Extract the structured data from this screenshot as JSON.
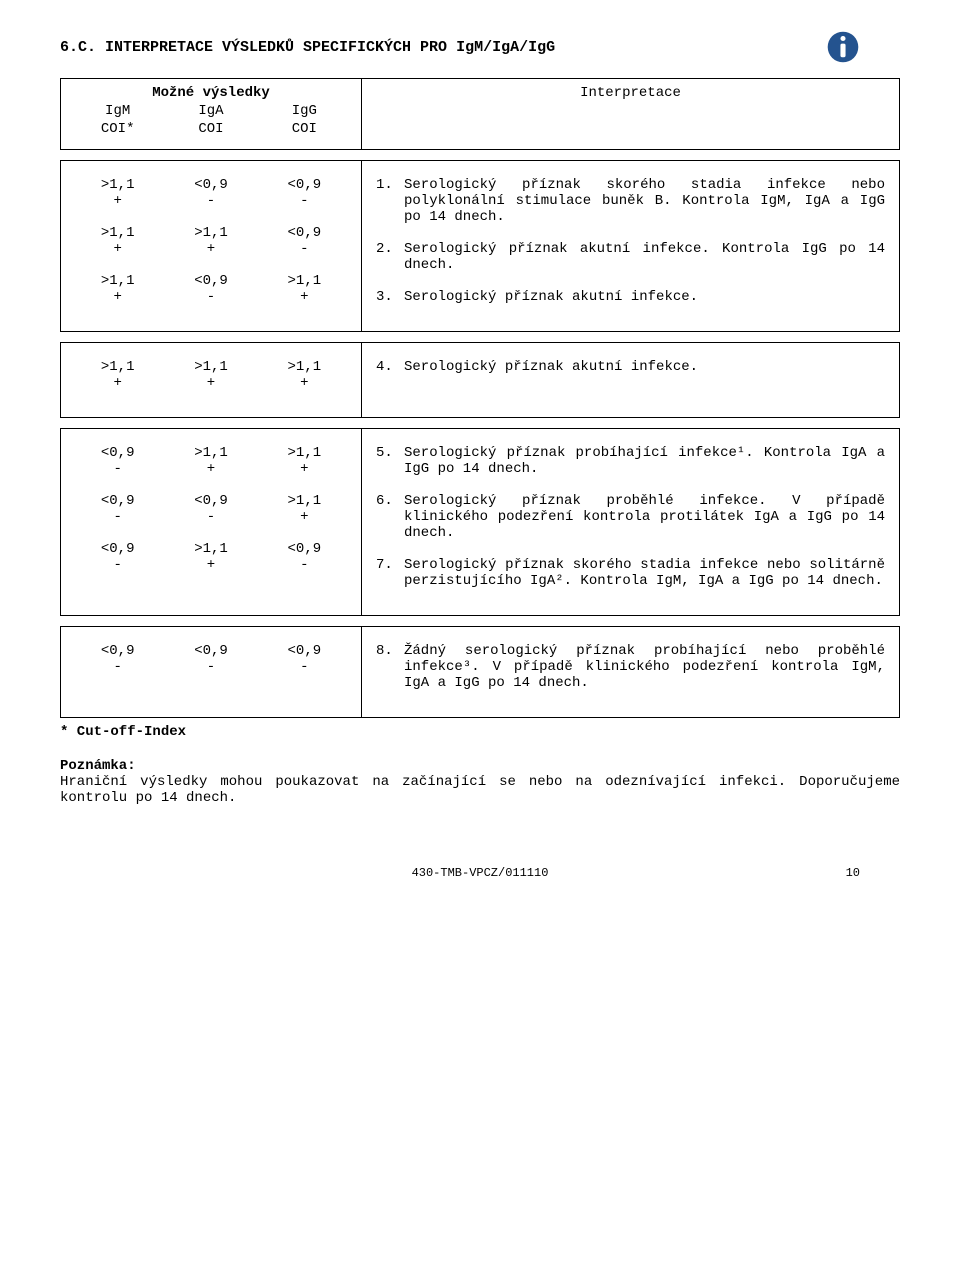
{
  "heading": "6.C. INTERPRETACE VÝSLEDKŮ SPECIFICKÝCH PRO IgM/IgA/IgG",
  "left_header": {
    "title": "Možné výsledky",
    "cols": [
      "IgM",
      "IgA",
      "IgG"
    ],
    "sub": [
      "COI*",
      "COI",
      "COI"
    ]
  },
  "right_header": "Interpretace",
  "blocks": [
    {
      "rows": [
        {
          "vals": [
            ">1,1",
            "<0,9",
            "<0,9"
          ],
          "signs": [
            "+",
            "-",
            "-"
          ],
          "num": "1.",
          "text": "Serologický příznak skorého stadia infekce nebo polyklonální stimulace buněk B. Kontrola IgM, IgA a IgG po 14 dnech."
        },
        {
          "vals": [
            ">1,1",
            ">1,1",
            "<0,9"
          ],
          "signs": [
            "+",
            "+",
            "-"
          ],
          "num": "2.",
          "text": "Serologický příznak akutní infekce. Kontrola IgG po 14 dnech."
        },
        {
          "vals": [
            ">1,1",
            "<0,9",
            ">1,1"
          ],
          "signs": [
            "+",
            "-",
            "+"
          ],
          "num": "3.",
          "text": "Serologický příznak akutní infekce."
        }
      ]
    },
    {
      "rows": [
        {
          "vals": [
            ">1,1",
            ">1,1",
            ">1,1"
          ],
          "signs": [
            "+",
            "+",
            "+"
          ],
          "num": "4.",
          "text": "Serologický příznak akutní infekce."
        }
      ]
    },
    {
      "rows": [
        {
          "vals": [
            "<0,9",
            ">1,1",
            ">1,1"
          ],
          "signs": [
            "-",
            "+",
            "+"
          ],
          "num": "5.",
          "text": "Serologický příznak probíhající infekce¹. Kontrola IgA a IgG po 14 dnech."
        },
        {
          "vals": [
            "<0,9",
            "<0,9",
            ">1,1"
          ],
          "signs": [
            "-",
            "-",
            "+"
          ],
          "num": "6.",
          "text": "Serologický příznak proběhlé infekce. V případě klinického podezření kontrola protilátek IgA a IgG po 14 dnech."
        },
        {
          "vals": [
            "<0,9",
            ">1,1",
            "<0,9"
          ],
          "signs": [
            "-",
            "+",
            "-"
          ],
          "num": "7.",
          "text": "Serologický příznak skorého stadia infekce nebo solitárně perzistujícího IgA². Kontrola IgM, IgA a IgG po 14 dnech."
        }
      ]
    },
    {
      "rows": [
        {
          "vals": [
            "<0,9",
            "<0,9",
            "<0,9"
          ],
          "signs": [
            "-",
            "-",
            "-"
          ],
          "num": "8.",
          "text": "Žádný serologický příznak probíhající nebo proběhlé infekce³. V případě klinického podezření kontrola IgM, IgA a IgG po 14 dnech."
        }
      ]
    }
  ],
  "cutoff": "* Cut-off-Index",
  "note_label": "Poznámka:",
  "note_text": "Hraniční výsledky mohou poukazovat na začínající se nebo na odeznívající infekci. Doporučujeme kontrolu po 14 dnech.",
  "footer_code": "430-TMB-VPCZ/011110",
  "footer_page": "10",
  "icon": {
    "bg": "#24538f",
    "fg": "#ffffff"
  }
}
